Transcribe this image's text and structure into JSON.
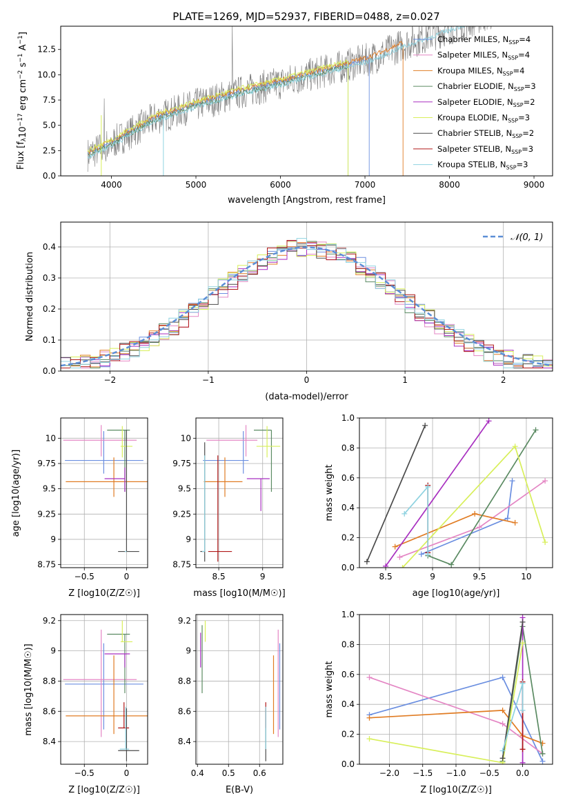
{
  "figure_title": "PLATE=1269, MJD=52937, FIBERID=0488, z=0.027",
  "colors": {
    "Chabrier MILES": "#6a8ee0",
    "Salpeter MILES": "#e486c4",
    "Kroupa MILES": "#e07b22",
    "Chabrier ELODIE": "#5a8a62",
    "Salpeter ELODIE": "#a82fc0",
    "Kroupa ELODIE": "#d8ef5a",
    "Chabrier STELIB": "#4a4a4a",
    "Salpeter STELIB": "#b01818",
    "Kroupa STELIB": "#8ed2e0",
    "data": "#7a7a7a",
    "gaussian": "#5b8ed6",
    "grid": "#b0b0b0"
  },
  "chart_data": [
    {
      "id": "spectrum",
      "type": "line",
      "title": "PLATE=1269, MJD=52937, FIBERID=0488, z=0.027",
      "xlabel": "wavelength [Angstrom, rest frame]",
      "ylabel": "Flux [f_λ10^-17 erg cm^-2 s^-1 A^-1]",
      "xlim": [
        3400,
        9220
      ],
      "ylim": [
        0,
        14.8
      ],
      "xticks": [
        4000,
        5000,
        6000,
        7000,
        8000,
        9000
      ],
      "yticks": [
        0.0,
        2.5,
        5.0,
        7.5,
        10.0,
        12.5
      ],
      "ytick_labels": [
        "0.0",
        "2.5",
        "5.0",
        "7.5",
        "10.0",
        "12.5"
      ],
      "grid": false,
      "legend_position": "upper-right",
      "legend": [
        {
          "model": "Chabrier MILES",
          "label": "Chabrier MILES, N",
          "sub": "SSP",
          "eq": "=4"
        },
        {
          "model": "Salpeter MILES",
          "label": "Salpeter MILES, N",
          "sub": "SSP",
          "eq": "=4"
        },
        {
          "model": "Kroupa MILES",
          "label": "Kroupa MILES, N",
          "sub": "SSP",
          "eq": "=4"
        },
        {
          "model": "Chabrier ELODIE",
          "label": "Chabrier ELODIE, N",
          "sub": "SSP",
          "eq": "=3"
        },
        {
          "model": "Salpeter ELODIE",
          "label": "Salpeter ELODIE, N",
          "sub": "SSP",
          "eq": "=2"
        },
        {
          "model": "Kroupa ELODIE",
          "label": "Kroupa ELODIE, N",
          "sub": "SSP",
          "eq": "=3"
        },
        {
          "model": "Chabrier STELIB",
          "label": "Chabrier STELIB, N",
          "sub": "SSP",
          "eq": "=2"
        },
        {
          "model": "Salpeter STELIB",
          "label": "Salpeter STELIB, N",
          "sub": "SSP",
          "eq": "=3"
        },
        {
          "model": "Kroupa STELIB",
          "label": "Kroupa STELIB, N",
          "sub": "SSP",
          "eq": "=3"
        }
      ],
      "continuum": {
        "x": [
          3720,
          4000,
          4500,
          5000,
          5500,
          6000,
          6500,
          7000,
          7200,
          7400
        ],
        "y": [
          2.1,
          3.2,
          5.6,
          7.0,
          8.2,
          9.2,
          10.3,
          11.4,
          12.0,
          12.8
        ]
      },
      "model_ranges": [
        {
          "model": "Chabrier MILES",
          "x": [
            3720,
            7050
          ]
        },
        {
          "model": "Kroupa MILES",
          "x": [
            3720,
            7450
          ]
        },
        {
          "model": "Chabrier ELODIE",
          "x": [
            3720,
            6800
          ]
        },
        {
          "model": "Kroupa ELODIE",
          "x": [
            3720,
            6800
          ]
        },
        {
          "model": "Kroupa STELIB",
          "x": [
            3720,
            9220
          ]
        }
      ]
    },
    {
      "id": "residuals",
      "type": "histogram",
      "xlabel": "(data-model)/error",
      "ylabel": "Normed distribution",
      "xlim": [
        -2.5,
        2.5
      ],
      "ylim": [
        0,
        0.48
      ],
      "xticks": [
        -2,
        -1,
        0,
        1,
        2
      ],
      "yticks": [
        0.0,
        0.1,
        0.2,
        0.3,
        0.4
      ],
      "ytick_labels": [
        "0.0",
        "0.1",
        "0.2",
        "0.3",
        "0.4"
      ],
      "grid": true,
      "legend_position": "upper-right",
      "legend_label": "𝒩(0, 1)",
      "bin_width": 0.1
    },
    {
      "id": "age-vs-Z",
      "type": "errorbar",
      "xlabel": "Z [log10(Z/Z☉)]",
      "ylabel": "age  [log10(age/yr)]",
      "xlim": [
        -0.78,
        0.25
      ],
      "ylim": [
        8.72,
        10.2
      ],
      "xticks": [
        -0.5,
        0.0
      ],
      "yticks": [
        8.75,
        9.0,
        9.25,
        9.5,
        9.75,
        10.0
      ],
      "grid": true,
      "points": [
        {
          "model": "Chabrier MILES",
          "x": -0.27,
          "xerr": [
            0.46,
            0.47
          ],
          "y": 9.78,
          "yerr": [
            0.13,
            0.29
          ]
        },
        {
          "model": "Salpeter MILES",
          "x": -0.3,
          "xerr": [
            0.45,
            0.42
          ],
          "y": 9.98,
          "yerr": [
            0.16,
            0.15
          ]
        },
        {
          "model": "Kroupa MILES",
          "x": -0.15,
          "xerr": [
            0.57,
            0.41
          ],
          "y": 9.57,
          "yerr": [
            0.15,
            0.24
          ]
        },
        {
          "model": "Chabrier ELODIE",
          "x": -0.02,
          "xerr": [
            0.21,
            0.06
          ],
          "y": 10.08,
          "yerr": [
            0.61,
            0.0
          ]
        },
        {
          "model": "Salpeter ELODIE",
          "x": -0.02,
          "xerr": [
            0.24,
            0.0
          ],
          "y": 9.6,
          "yerr": [
            0.13,
            0.11
          ]
        },
        {
          "model": "Kroupa ELODIE",
          "x": -0.05,
          "xerr": [
            0.02,
            0.12
          ],
          "y": 9.92,
          "yerr": [
            0.11,
            0.2
          ]
        },
        {
          "model": "Chabrier STELIB",
          "x": 0.0,
          "xerr": [
            0.1,
            0.15
          ],
          "y": 8.88,
          "yerr": [
            0.0,
            1.2
          ]
        },
        {
          "model": "Salpeter STELIB",
          "x": 0.0,
          "xerr": [
            0.0,
            0.0
          ],
          "y": 9.6,
          "yerr": [
            0.0,
            0.0
          ]
        },
        {
          "model": "Kroupa STELIB",
          "x": 0.0,
          "xerr": [
            0.02,
            0.0
          ],
          "y": 8.88,
          "yerr": [
            0.0,
            0.0
          ]
        }
      ]
    },
    {
      "id": "age-vs-mass",
      "type": "errorbar",
      "xlabel": "mass [log10(M/M☉)]",
      "ylabel": "",
      "xlim": [
        8.24,
        9.23
      ],
      "ylim": [
        8.72,
        10.2
      ],
      "xticks": [
        8.5,
        9.0
      ],
      "yticks": [
        8.75,
        9.0,
        9.25,
        9.5,
        9.75,
        10.0
      ],
      "grid": true,
      "points": [
        {
          "model": "Chabrier MILES",
          "x": 8.78,
          "xerr": [
            0.46,
            0.06
          ],
          "y": 9.78,
          "yerr": [
            0.13,
            0.29
          ]
        },
        {
          "model": "Salpeter MILES",
          "x": 8.81,
          "xerr": [
            0.45,
            0.13
          ],
          "y": 9.98,
          "yerr": [
            0.16,
            0.15
          ]
        },
        {
          "model": "Kroupa MILES",
          "x": 8.57,
          "xerr": [
            0.24,
            0.2
          ],
          "y": 9.57,
          "yerr": [
            0.15,
            0.24
          ]
        },
        {
          "model": "Chabrier ELODIE",
          "x": 9.1,
          "xerr": [
            0.2,
            0.0
          ],
          "y": 10.08,
          "yerr": [
            0.61,
            0.0
          ]
        },
        {
          "model": "Salpeter ELODIE",
          "x": 8.98,
          "xerr": [
            0.16,
            0.1
          ],
          "y": 9.6,
          "yerr": [
            0.32,
            0.0
          ]
        },
        {
          "model": "Kroupa ELODIE",
          "x": 9.05,
          "xerr": [
            0.12,
            0.15
          ],
          "y": 9.92,
          "yerr": [
            0.11,
            0.2
          ]
        },
        {
          "model": "Chabrier STELIB",
          "x": 8.34,
          "xerr": [
            0.05,
            0.0
          ],
          "y": 8.88,
          "yerr": [
            0.1,
            1.08
          ]
        },
        {
          "model": "Salpeter STELIB",
          "x": 8.49,
          "xerr": [
            0.11,
            0.16
          ],
          "y": 8.88,
          "yerr": [
            0.1,
            0.95
          ]
        },
        {
          "model": "Kroupa STELIB",
          "x": 8.34,
          "xerr": [
            0.03,
            0.0
          ],
          "y": 8.88,
          "yerr": [
            0.0,
            0.95
          ]
        }
      ]
    },
    {
      "id": "mass-vs-Z",
      "type": "errorbar",
      "xlabel": "Z [log10(Z/Z☉)]",
      "ylabel": "mass [log10(M/M☉)]",
      "xlim": [
        -0.78,
        0.25
      ],
      "ylim": [
        8.25,
        9.24
      ],
      "xticks": [
        -0.5,
        0.0
      ],
      "yticks": [
        8.4,
        8.6,
        8.8,
        9.0,
        9.2
      ],
      "grid": true,
      "points": [
        {
          "model": "Chabrier MILES",
          "x": -0.27,
          "xerr": [
            0.46,
            0.47
          ],
          "y": 8.78,
          "yerr": [
            0.3,
            0.27
          ]
        },
        {
          "model": "Salpeter MILES",
          "x": -0.3,
          "xerr": [
            0.45,
            0.42
          ],
          "y": 8.81,
          "yerr": [
            0.38,
            0.33
          ]
        },
        {
          "model": "Kroupa MILES",
          "x": -0.15,
          "xerr": [
            0.57,
            0.41
          ],
          "y": 8.57,
          "yerr": [
            0.12,
            0.4
          ]
        },
        {
          "model": "Chabrier ELODIE",
          "x": -0.02,
          "xerr": [
            0.21,
            0.06
          ],
          "y": 9.11,
          "yerr": [
            0.39,
            0.0
          ]
        },
        {
          "model": "Salpeter ELODIE",
          "x": -0.02,
          "xerr": [
            0.24,
            0.06
          ],
          "y": 8.98,
          "yerr": [
            0.09,
            0.0
          ]
        },
        {
          "model": "Kroupa ELODIE",
          "x": -0.05,
          "xerr": [
            0.02,
            0.12
          ],
          "y": 9.06,
          "yerr": [
            0.0,
            0.14
          ]
        },
        {
          "model": "Chabrier STELIB",
          "x": 0.0,
          "xerr": [
            0.1,
            0.15
          ],
          "y": 8.34,
          "yerr": [
            0.07,
            0.28
          ]
        },
        {
          "model": "Salpeter STELIB",
          "x": -0.03,
          "xerr": [
            0.07,
            0.06
          ],
          "y": 8.49,
          "yerr": [
            0.0,
            0.17
          ]
        },
        {
          "model": "Kroupa STELIB",
          "x": -0.01,
          "xerr": [
            0.07,
            0.04
          ],
          "y": 8.35,
          "yerr": [
            0.0,
            0.28
          ]
        }
      ]
    },
    {
      "id": "mass-vs-ebv",
      "type": "errorbar",
      "xlabel": "E(B-V)",
      "ylabel": "",
      "xlim": [
        0.395,
        0.675
      ],
      "ylim": [
        8.25,
        9.24
      ],
      "xticks": [
        0.4,
        0.5,
        0.6
      ],
      "yticks": [
        8.4,
        8.6,
        8.8,
        9.0,
        9.2
      ],
      "grid": true,
      "points": [
        {
          "model": "Chabrier MILES",
          "x": 0.665,
          "y": 8.78,
          "yerr": [
            0.3,
            0.27
          ]
        },
        {
          "model": "Salpeter MILES",
          "x": 0.66,
          "y": 8.81,
          "yerr": [
            0.38,
            0.33
          ]
        },
        {
          "model": "Kroupa MILES",
          "x": 0.645,
          "y": 8.57,
          "yerr": [
            0.12,
            0.4
          ]
        },
        {
          "model": "Chabrier ELODIE",
          "x": 0.415,
          "y": 9.11,
          "yerr": [
            0.39,
            0.06
          ]
        },
        {
          "model": "Salpeter ELODIE",
          "x": 0.41,
          "y": 8.98,
          "yerr": [
            0.09,
            0.14
          ]
        },
        {
          "model": "Kroupa ELODIE",
          "x": 0.425,
          "y": 9.06,
          "yerr": [
            0.0,
            0.14
          ]
        },
        {
          "model": "Chabrier STELIB",
          "x": 0.62,
          "y": 8.34,
          "yerr": [
            0.07,
            0.28
          ]
        },
        {
          "model": "Salpeter STELIB",
          "x": 0.62,
          "y": 8.49,
          "yerr": [
            0.0,
            0.17
          ]
        },
        {
          "model": "Kroupa STELIB",
          "x": 0.62,
          "y": 8.35,
          "yerr": [
            0.0,
            0.28
          ]
        }
      ]
    },
    {
      "id": "weight-vs-age",
      "type": "line",
      "xlabel": "age  [log10(age/yr)]",
      "ylabel": "mass weight",
      "xlim": [
        8.22,
        10.28
      ],
      "ylim": [
        0.0,
        1.0
      ],
      "xticks": [
        8.5,
        9.0,
        9.5,
        10.0
      ],
      "yticks": [
        0.0,
        0.2,
        0.4,
        0.6,
        0.8,
        1.0
      ],
      "ytick_labels": [
        "0.0",
        "0.2",
        "0.4",
        "0.6",
        "0.8",
        "1.0"
      ],
      "grid": true,
      "series": [
        {
          "model": "Chabrier MILES",
          "x": [
            8.88,
            9.8,
            9.85
          ],
          "y": [
            0.09,
            0.33,
            0.58
          ]
        },
        {
          "model": "Salpeter MILES",
          "x": [
            8.65,
            9.5,
            10.2
          ],
          "y": [
            0.07,
            0.27,
            0.58
          ]
        },
        {
          "model": "Kroupa MILES",
          "x": [
            8.6,
            9.45,
            9.88
          ],
          "y": [
            0.14,
            0.36,
            0.3
          ]
        },
        {
          "model": "Chabrier ELODIE",
          "x": [
            8.95,
            9.2,
            10.1
          ],
          "y": [
            0.08,
            0.02,
            0.92
          ]
        },
        {
          "model": "Salpeter ELODIE",
          "x": [
            8.5,
            9.6
          ],
          "y": [
            0.01,
            0.98
          ]
        },
        {
          "model": "Kroupa ELODIE",
          "x": [
            8.68,
            9.88,
            10.2
          ],
          "y": [
            0.0,
            0.81,
            0.17
          ]
        },
        {
          "model": "Chabrier STELIB",
          "x": [
            8.3,
            8.92
          ],
          "y": [
            0.04,
            0.95
          ]
        },
        {
          "model": "Salpeter STELIB",
          "x": [
            8.95,
            8.95
          ],
          "y": [
            0.1,
            0.55
          ]
        },
        {
          "model": "Kroupa STELIB",
          "x": [
            8.7,
            8.95,
            8.95
          ],
          "y": [
            0.36,
            0.54,
            0.09
          ]
        }
      ]
    },
    {
      "id": "weight-vs-Z",
      "type": "line",
      "xlabel": "Z [log10(Z/Z☉)]",
      "ylabel": "mass weight",
      "xlim": [
        -2.45,
        0.45
      ],
      "ylim": [
        0.0,
        1.0
      ],
      "xticks": [
        -2.0,
        -1.5,
        -1.0,
        -0.5,
        0.0
      ],
      "xtick_labels": [
        "−2.0",
        "−1.5",
        "−1.0",
        "−0.5",
        "0.0"
      ],
      "yticks": [
        0.0,
        0.2,
        0.4,
        0.6,
        0.8,
        1.0
      ],
      "ytick_labels": [
        "0.0",
        "0.2",
        "0.4",
        "0.6",
        "0.8",
        "1.0"
      ],
      "grid": true,
      "series": [
        {
          "model": "Chabrier MILES",
          "x": [
            -2.3,
            -0.3,
            0.3
          ],
          "y": [
            0.33,
            0.58,
            0.02
          ]
        },
        {
          "model": "Salpeter MILES",
          "x": [
            -2.3,
            -0.3,
            0.3
          ],
          "y": [
            0.58,
            0.27,
            0.07
          ]
        },
        {
          "model": "Kroupa MILES",
          "x": [
            -2.3,
            -0.3,
            0.0,
            0.3
          ],
          "y": [
            0.31,
            0.36,
            0.19,
            0.14
          ]
        },
        {
          "model": "Chabrier ELODIE",
          "x": [
            -0.3,
            0.0,
            0.3
          ],
          "y": [
            0.02,
            0.92,
            0.07
          ]
        },
        {
          "model": "Salpeter ELODIE",
          "x": [
            0.0,
            0.0
          ],
          "y": [
            0.01,
            0.98
          ]
        },
        {
          "model": "Kroupa ELODIE",
          "x": [
            -2.3,
            -0.3,
            0.0
          ],
          "y": [
            0.17,
            0.01,
            0.81
          ]
        },
        {
          "model": "Chabrier STELIB",
          "x": [
            -0.3,
            0.0
          ],
          "y": [
            0.04,
            0.95
          ]
        },
        {
          "model": "Salpeter STELIB",
          "x": [
            0.0,
            0.0
          ],
          "y": [
            0.1,
            0.55
          ]
        },
        {
          "model": "Kroupa STELIB",
          "x": [
            -0.3,
            0.0,
            0.0
          ],
          "y": [
            0.09,
            0.54,
            0.36
          ]
        }
      ]
    }
  ]
}
